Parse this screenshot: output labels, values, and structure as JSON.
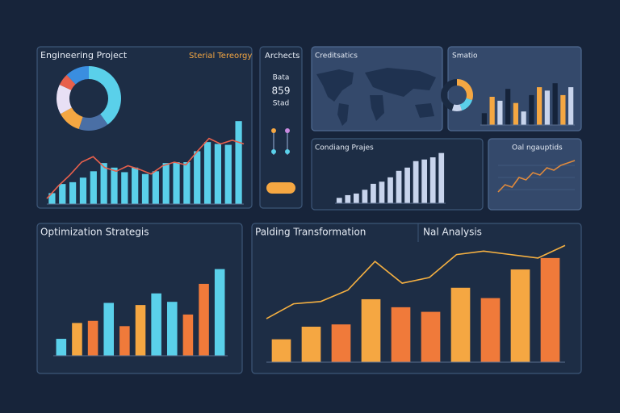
{
  "chart_data": [
    {
      "type": "bar",
      "title": "Engineering Project",
      "subtitle": "Sterial Tereorgy",
      "ylim": [
        0,
        100
      ],
      "series": [
        {
          "type": "bar",
          "color": "#5ad0ea",
          "values": [
            12,
            22,
            24,
            29,
            36,
            45,
            40,
            35,
            40,
            33,
            36,
            45,
            46,
            46,
            58,
            68,
            66,
            65,
            91
          ]
        },
        {
          "type": "line",
          "color": "#e8604c",
          "values": [
            6,
            20,
            32,
            46,
            52,
            40,
            36,
            42,
            38,
            33,
            42,
            46,
            43,
            58,
            72,
            66,
            70,
            66
          ]
        }
      ]
    },
    {
      "type": "pie",
      "values": [
        40,
        15,
        12,
        15,
        6,
        12
      ],
      "colors": [
        "#5ad0ea",
        "#4a6fa5",
        "#f5a742",
        "#e8e0f5",
        "#e8604c",
        "#3a8ee0"
      ]
    },
    {
      "type": "bar",
      "title": "Smatio",
      "ylim": [
        0,
        100
      ],
      "values": [
        21,
        50,
        43,
        64,
        39,
        24,
        53,
        67,
        61,
        74,
        53,
        67
      ],
      "colors": [
        "#15233a",
        "#f5a742",
        "#c8d4ec"
      ]
    },
    {
      "type": "pie",
      "values": [
        30,
        15,
        10,
        45
      ],
      "colors": [
        "#f5a742",
        "#5ad0ea",
        "#c8d4ec",
        "#1a2a42"
      ]
    },
    {
      "type": "bar",
      "title": "Condiang Prajes",
      "ylim": [
        0,
        100
      ],
      "values": [
        10,
        15,
        18,
        25,
        36,
        40,
        48,
        60,
        66,
        78,
        81,
        85,
        93
      ],
      "colors": [
        "#c8d4ec"
      ]
    },
    {
      "type": "line",
      "title": "Oal ngauptids",
      "ylim": [
        0,
        100
      ],
      "values": [
        20,
        35,
        30,
        50,
        45,
        60,
        55,
        70,
        65,
        75,
        80,
        85
      ],
      "color": "#e08a3c"
    },
    {
      "type": "bar",
      "title": "Optimization Strategis",
      "ylim": [
        0,
        100
      ],
      "values": [
        16,
        31,
        33,
        50,
        28,
        48,
        59,
        51,
        39,
        68,
        82
      ],
      "colors": [
        "#5ad0ea",
        "#f5a742",
        "#f07a3a",
        "#5ad0ea",
        "#f07a3a",
        "#f5a742",
        "#5ad0ea",
        "#5ad0ea",
        "#f07a3a",
        "#f07a3a",
        "#5ad0ea"
      ]
    },
    {
      "type": "bar",
      "title": "Palding Transformation",
      "subtitle": "Nal Analysis",
      "ylim": [
        0,
        105
      ],
      "series": [
        {
          "type": "bar",
          "colors": [
            "#f5a742",
            "#f5a742",
            "#f07a3a",
            "#f5a742",
            "#f07a3a",
            "#f07a3a",
            "#f5a742",
            "#f07a3a",
            "#f5a742",
            "#f07a3a"
          ],
          "values": [
            20,
            31,
            33,
            55,
            48,
            44,
            65,
            56,
            81,
            91
          ]
        },
        {
          "type": "line",
          "color": "#f5b041",
          "values": [
            38,
            51,
            53,
            63,
            88,
            69,
            74,
            94,
            97,
            94,
            91,
            102
          ]
        }
      ]
    }
  ],
  "panels": {
    "archects": {
      "title": "Archects",
      "label": "Bata",
      "value": 859,
      "caption": "Stad"
    },
    "map": {
      "title": "Creditsatics"
    }
  }
}
